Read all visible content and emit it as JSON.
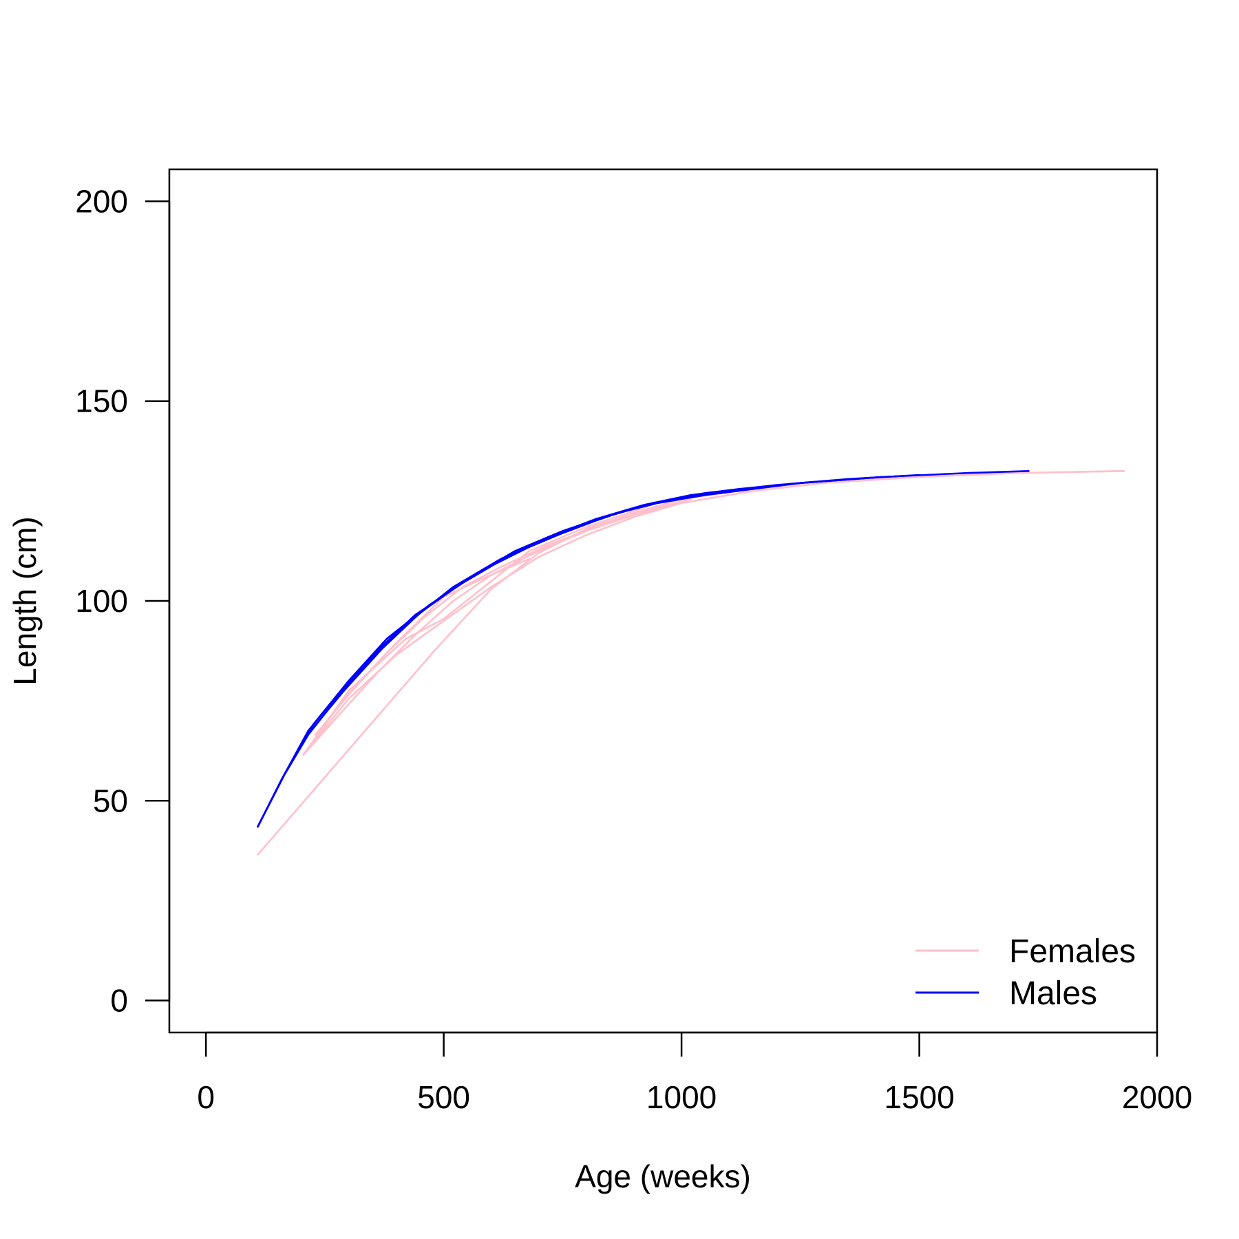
{
  "chart_data": {
    "type": "line",
    "title": "",
    "xlabel": "Age (weeks)",
    "ylabel": "Length (cm)",
    "xlim": [
      -77,
      2000
    ],
    "ylim": [
      -8,
      208
    ],
    "x_ticks": [
      0,
      500,
      1000,
      1500,
      2000
    ],
    "y_ticks": [
      0,
      50,
      100,
      150,
      200
    ],
    "x_tick_labels": [
      "0",
      "500",
      "1000",
      "1500",
      "2000"
    ],
    "y_tick_labels": [
      "0",
      "50",
      "100",
      "150",
      "200"
    ],
    "grid": false,
    "legend": {
      "position": "bottom-right",
      "entries": [
        {
          "label": "Females",
          "color": "#ffc0cb"
        },
        {
          "label": "Males",
          "color": "#0000ff"
        }
      ]
    },
    "series": [
      {
        "group": "Males",
        "color": "#0000ff",
        "x": [
          109,
          165,
          220,
          290,
          370,
          450,
          550,
          650,
          750,
          850,
          950,
          1050,
          1150,
          1250,
          1420
        ],
        "y": [
          43.5,
          56.5,
          67.5,
          77.5,
          88,
          97,
          105.5,
          112.5,
          117.5,
          121.5,
          124.5,
          126.5,
          128,
          129.5,
          131
        ]
      },
      {
        "group": "Males",
        "color": "#0000ff",
        "x": [
          109,
          160,
          215,
          275,
          350,
          430,
          520,
          620,
          720,
          820,
          920,
          1020,
          1120,
          1250,
          1420
        ],
        "y": [
          43.5,
          55.5,
          66.5,
          75.5,
          86,
          95,
          103.5,
          110.5,
          116,
          120.5,
          124,
          126.5,
          128,
          129.5,
          131
        ]
      },
      {
        "group": "Males",
        "color": "#0000ff",
        "x": [
          109,
          165,
          225,
          300,
          380,
          470,
          570,
          680,
          780,
          880,
          980,
          1100,
          1250,
          1420,
          1600,
          1730
        ],
        "y": [
          43.5,
          56.5,
          69,
          80,
          90.5,
          99,
          107,
          113.5,
          118.5,
          122.5,
          125.5,
          127.5,
          129.5,
          131,
          132,
          132.5
        ]
      },
      {
        "group": "Males",
        "color": "#0000ff",
        "x": [
          109,
          160,
          215,
          285,
          360,
          440,
          540,
          640,
          740,
          840,
          940,
          1050,
          1200,
          1350,
          1500
        ],
        "y": [
          43.5,
          55.5,
          67.5,
          77.5,
          87.5,
          96.5,
          104.5,
          111.5,
          116.5,
          121,
          124.5,
          127,
          129,
          130.5,
          131.5
        ]
      },
      {
        "group": "Females",
        "color": "#ffc0cb",
        "x": [
          109,
          480,
          600,
          700,
          800,
          900,
          1000,
          1150,
          1300,
          1500,
          1700,
          1930
        ],
        "y": [
          36.5,
          87.5,
          103,
          112,
          118,
          122,
          125.5,
          128,
          130,
          131,
          132,
          132.5
        ]
      },
      {
        "group": "Females",
        "color": "#ffc0cb",
        "x": [
          205,
          300,
          400,
          500,
          600,
          700,
          800,
          900,
          1000,
          1150,
          1300,
          1500,
          1700,
          1930
        ],
        "y": [
          61.5,
          75.5,
          86.5,
          95,
          103.5,
          111,
          116.5,
          121,
          124.5,
          127.5,
          129.5,
          131,
          132,
          132.5
        ]
      },
      {
        "group": "Females",
        "color": "#ffc0cb",
        "x": [
          205,
          280,
          360,
          440,
          520,
          600,
          700,
          800,
          900,
          1000,
          1150
        ],
        "y": [
          61.5,
          71.5,
          82,
          91.5,
          100,
          106.5,
          112.5,
          117.5,
          121.5,
          124.5,
          127.5
        ]
      },
      {
        "group": "Females",
        "color": "#ffc0cb",
        "x": [
          230,
          300,
          380,
          460,
          540,
          620,
          720,
          820,
          920,
          1020
        ],
        "y": [
          66.5,
          76.5,
          87,
          96,
          103.5,
          108.5,
          114,
          118.5,
          122.5,
          125.5
        ]
      },
      {
        "group": "Females",
        "color": "#ffc0cb",
        "x": [
          205,
          300,
          420,
          500,
          680,
          800,
          950
        ],
        "y": [
          61.5,
          77.5,
          90.5,
          95.5,
          112.5,
          118.5,
          124.5
        ]
      },
      {
        "group": "Females",
        "color": "#ffc0cb",
        "x": [
          205,
          290,
          400,
          500,
          580,
          680
        ],
        "y": [
          61.5,
          75.5,
          89.5,
          101,
          105.5,
          110.5
        ]
      }
    ]
  }
}
